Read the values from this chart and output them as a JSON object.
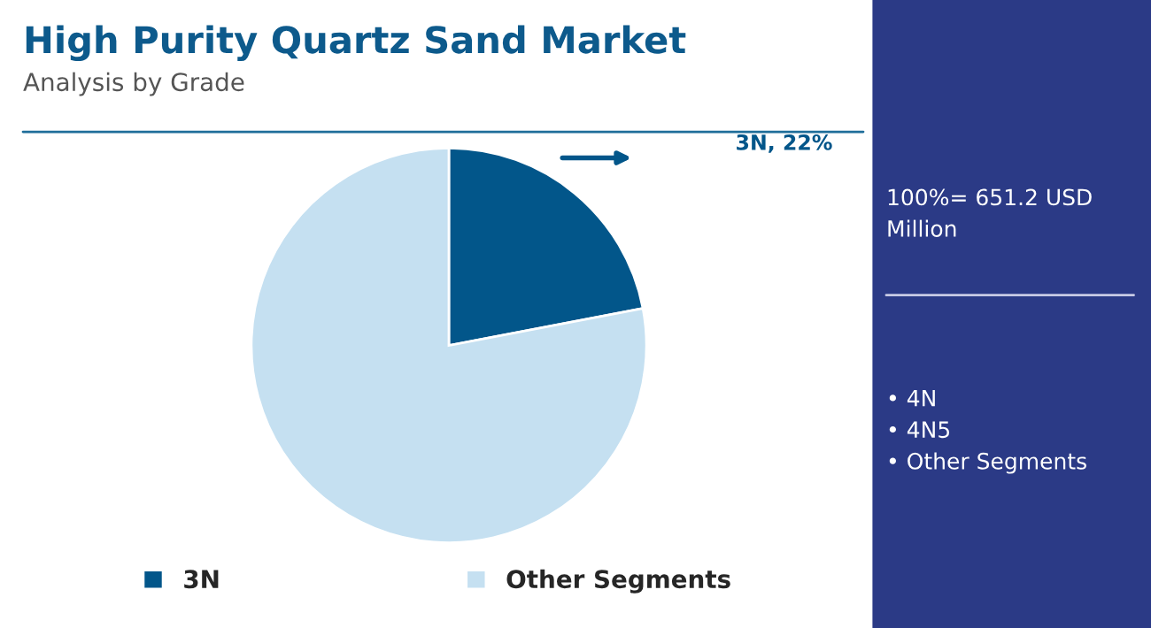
{
  "chart_data": {
    "type": "pie",
    "title": "High Purity Quartz Sand Market",
    "subtitle": "Analysis by Grade",
    "categories": [
      "3N",
      "Other Segments"
    ],
    "values": [
      22,
      78
    ],
    "colors": [
      "#02568a",
      "#c5e0f1"
    ],
    "value_labels": [
      "3N, 22%",
      null
    ],
    "legend": "bottom",
    "annotations": [
      "100%= 651.2 USD Million",
      "• 4N\n• 4N5\n• Other Segments"
    ]
  }
}
